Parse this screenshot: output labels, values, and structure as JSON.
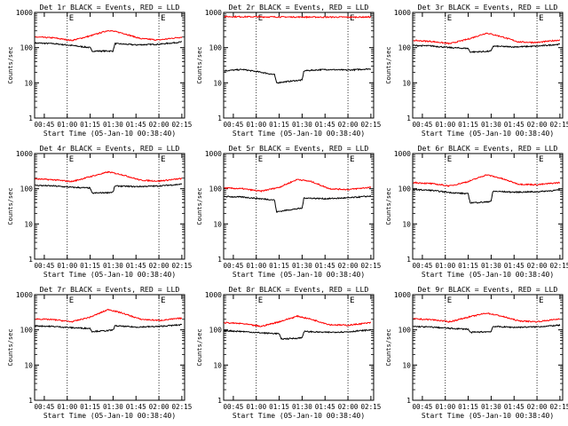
{
  "chart_data": [
    {
      "type": "line",
      "title": "Det 1r BLACK = Events, RED = LLD",
      "xlabel": "Start Time (05-Jan-10 00:38:40)",
      "ylabel": "Counts/sec",
      "yscale": "log",
      "ylim": [
        1,
        1000
      ],
      "xlim": [
        0.6444,
        2.28
      ],
      "xticks": [
        "00:45",
        "01:00",
        "01:15",
        "01:30",
        "01:45",
        "02:00",
        "02:15"
      ],
      "yticks": [
        "1",
        "10",
        "100",
        "1000"
      ],
      "markers": [
        "E",
        "E"
      ],
      "vlines": [
        1.0,
        2.0
      ],
      "series": [
        {
          "color": "#000000",
          "values": [
            [
              0.65,
              135
            ],
            [
              0.85,
              130
            ],
            [
              1.05,
              115
            ],
            [
              1.25,
              100
            ],
            [
              1.27,
              80
            ],
            [
              1.45,
              80
            ],
            [
              1.5,
              80
            ],
            [
              1.52,
              130
            ],
            [
              1.75,
              120
            ],
            [
              2.0,
              125
            ],
            [
              2.25,
              145
            ]
          ]
        },
        {
          "color": "#ff0000",
          "values": [
            [
              0.65,
              200
            ],
            [
              0.85,
              190
            ],
            [
              1.05,
              160
            ],
            [
              1.25,
              215
            ],
            [
              1.45,
              310
            ],
            [
              1.6,
              260
            ],
            [
              1.8,
              180
            ],
            [
              2.0,
              165
            ],
            [
              2.25,
              200
            ]
          ]
        }
      ]
    },
    {
      "type": "line",
      "title": "Det 2r BLACK = Events, RED = LLD",
      "xlabel": "Start Time (05-Jan-10 00:38:40)",
      "ylabel": "Counts/sec",
      "yscale": "log",
      "ylim": [
        1,
        1000
      ],
      "xlim": [
        0.6444,
        2.28
      ],
      "xticks": [
        "00:45",
        "01:00",
        "01:15",
        "01:30",
        "01:45",
        "02:00",
        "02:15"
      ],
      "yticks": [
        "1",
        "10",
        "100",
        "1000"
      ],
      "markers": [
        "E",
        "E"
      ],
      "vlines": [
        1.0,
        2.0
      ],
      "series": [
        {
          "color": "#000000",
          "values": [
            [
              0.65,
              22
            ],
            [
              0.85,
              24
            ],
            [
              1.05,
              20
            ],
            [
              1.2,
              17
            ],
            [
              1.22,
              10
            ],
            [
              1.35,
              11
            ],
            [
              1.5,
              12
            ],
            [
              1.52,
              22
            ],
            [
              1.75,
              24
            ],
            [
              2.0,
              23
            ],
            [
              2.25,
              25
            ]
          ]
        },
        {
          "color": "#ff0000",
          "values": [
            [
              0.65,
              760
            ],
            [
              1.0,
              750
            ],
            [
              1.5,
              740
            ],
            [
              2.0,
              735
            ],
            [
              2.25,
              740
            ]
          ]
        }
      ]
    },
    {
      "type": "line",
      "title": "Det 3r BLACK = Events, RED = LLD",
      "xlabel": "Start Time (05-Jan-10 00:38:40)",
      "ylabel": "Counts/sec",
      "yscale": "log",
      "ylim": [
        1,
        1000
      ],
      "xlim": [
        0.6444,
        2.28
      ],
      "xticks": [
        "00:45",
        "01:00",
        "01:15",
        "01:30",
        "01:45",
        "02:00",
        "02:15"
      ],
      "yticks": [
        "1",
        "10",
        "100",
        "1000"
      ],
      "markers": [
        "E",
        "E"
      ],
      "vlines": [
        1.0,
        2.0
      ],
      "series": [
        {
          "color": "#000000",
          "values": [
            [
              0.65,
              115
            ],
            [
              0.85,
              112
            ],
            [
              1.05,
              100
            ],
            [
              1.25,
              95
            ],
            [
              1.27,
              75
            ],
            [
              1.45,
              78
            ],
            [
              1.5,
              80
            ],
            [
              1.52,
              110
            ],
            [
              1.75,
              105
            ],
            [
              2.0,
              110
            ],
            [
              2.25,
              125
            ]
          ]
        },
        {
          "color": "#ff0000",
          "values": [
            [
              0.65,
              160
            ],
            [
              0.85,
              150
            ],
            [
              1.05,
              130
            ],
            [
              1.25,
              175
            ],
            [
              1.45,
              260
            ],
            [
              1.6,
              210
            ],
            [
              1.8,
              145
            ],
            [
              2.0,
              140
            ],
            [
              2.25,
              165
            ]
          ]
        }
      ]
    },
    {
      "type": "line",
      "title": "Det 4r BLACK = Events, RED = LLD",
      "xlabel": "Start Time (05-Jan-10 00:38:40)",
      "ylabel": "Counts/sec",
      "yscale": "log",
      "ylim": [
        1,
        1000
      ],
      "xlim": [
        0.6444,
        2.28
      ],
      "xticks": [
        "00:45",
        "01:00",
        "01:15",
        "01:30",
        "01:45",
        "02:00",
        "02:15"
      ],
      "yticks": [
        "1",
        "10",
        "100",
        "1000"
      ],
      "markers": [
        "E",
        "E"
      ],
      "vlines": [
        1.0,
        2.0
      ],
      "series": [
        {
          "color": "#000000",
          "values": [
            [
              0.65,
              125
            ],
            [
              0.85,
              120
            ],
            [
              1.05,
              110
            ],
            [
              1.25,
              105
            ],
            [
              1.27,
              75
            ],
            [
              1.45,
              78
            ],
            [
              1.5,
              80
            ],
            [
              1.52,
              120
            ],
            [
              1.75,
              115
            ],
            [
              2.0,
              120
            ],
            [
              2.25,
              135
            ]
          ]
        },
        {
          "color": "#ff0000",
          "values": [
            [
              0.65,
              190
            ],
            [
              0.85,
              180
            ],
            [
              1.05,
              160
            ],
            [
              1.25,
              220
            ],
            [
              1.45,
              300
            ],
            [
              1.6,
              250
            ],
            [
              1.8,
              175
            ],
            [
              2.0,
              165
            ],
            [
              2.25,
              195
            ]
          ]
        }
      ]
    },
    {
      "type": "line",
      "title": "Det 5r BLACK = Events, RED = LLD",
      "xlabel": "Start Time (05-Jan-10 00:38:40)",
      "ylabel": "Counts/sec",
      "yscale": "log",
      "ylim": [
        1,
        1000
      ],
      "xlim": [
        0.6444,
        2.28
      ],
      "xticks": [
        "00:45",
        "01:00",
        "01:15",
        "01:30",
        "01:45",
        "02:00",
        "02:15"
      ],
      "yticks": [
        "1",
        "10",
        "100",
        "1000"
      ],
      "markers": [
        "E",
        "E"
      ],
      "vlines": [
        1.0,
        2.0
      ],
      "series": [
        {
          "color": "#000000",
          "values": [
            [
              0.65,
              60
            ],
            [
              0.85,
              58
            ],
            [
              1.05,
              52
            ],
            [
              1.2,
              48
            ],
            [
              1.22,
              22
            ],
            [
              1.35,
              25
            ],
            [
              1.5,
              28
            ],
            [
              1.52,
              55
            ],
            [
              1.75,
              52
            ],
            [
              2.0,
              55
            ],
            [
              2.25,
              62
            ]
          ]
        },
        {
          "color": "#ff0000",
          "values": [
            [
              0.65,
              105
            ],
            [
              0.85,
              100
            ],
            [
              1.05,
              85
            ],
            [
              1.25,
              110
            ],
            [
              1.45,
              185
            ],
            [
              1.6,
              160
            ],
            [
              1.8,
              100
            ],
            [
              2.0,
              95
            ],
            [
              2.25,
              110
            ]
          ]
        }
      ]
    },
    {
      "type": "line",
      "title": "Det 6r BLACK = Events, RED = LLD",
      "xlabel": "Start Time (05-Jan-10 00:38:40)",
      "ylabel": "Counts/sec",
      "yscale": "log",
      "ylim": [
        1,
        1000
      ],
      "xlim": [
        0.6444,
        2.28
      ],
      "xticks": [
        "00:45",
        "01:00",
        "01:15",
        "01:30",
        "01:45",
        "02:00",
        "02:15"
      ],
      "yticks": [
        "1",
        "10",
        "100",
        "1000"
      ],
      "markers": [
        "E",
        "E"
      ],
      "vlines": [
        1.0,
        2.0
      ],
      "series": [
        {
          "color": "#000000",
          "values": [
            [
              0.65,
              95
            ],
            [
              0.85,
              90
            ],
            [
              1.05,
              78
            ],
            [
              1.25,
              72
            ],
            [
              1.27,
              40
            ],
            [
              1.45,
              42
            ],
            [
              1.5,
              45
            ],
            [
              1.52,
              85
            ],
            [
              1.75,
              80
            ],
            [
              2.0,
              82
            ],
            [
              2.25,
              92
            ]
          ]
        },
        {
          "color": "#ff0000",
          "values": [
            [
              0.65,
              150
            ],
            [
              0.85,
              140
            ],
            [
              1.05,
              120
            ],
            [
              1.25,
              160
            ],
            [
              1.45,
              250
            ],
            [
              1.6,
              200
            ],
            [
              1.8,
              135
            ],
            [
              2.0,
              130
            ],
            [
              2.25,
              150
            ]
          ]
        }
      ]
    },
    {
      "type": "line",
      "title": "Det 7r BLACK = Events, RED = LLD",
      "xlabel": "Start Time (05-Jan-10 00:38:40)",
      "ylabel": "Counts/sec",
      "yscale": "log",
      "ylim": [
        1,
        1000
      ],
      "xlim": [
        0.6444,
        2.28
      ],
      "xticks": [
        "00:45",
        "01:00",
        "01:15",
        "01:30",
        "01:45",
        "02:00",
        "02:15"
      ],
      "yticks": [
        "1",
        "10",
        "100",
        "1000"
      ],
      "markers": [
        "E",
        "E"
      ],
      "vlines": [
        1.0,
        2.0
      ],
      "series": [
        {
          "color": "#000000",
          "values": [
            [
              0.65,
              130
            ],
            [
              0.85,
              125
            ],
            [
              1.05,
              115
            ],
            [
              1.25,
              110
            ],
            [
              1.27,
              90
            ],
            [
              1.45,
              95
            ],
            [
              1.5,
              100
            ],
            [
              1.52,
              130
            ],
            [
              1.75,
              120
            ],
            [
              2.0,
              125
            ],
            [
              2.25,
              140
            ]
          ]
        },
        {
          "color": "#ff0000",
          "values": [
            [
              0.65,
              205
            ],
            [
              0.85,
              195
            ],
            [
              1.05,
              170
            ],
            [
              1.25,
              230
            ],
            [
              1.45,
              380
            ],
            [
              1.6,
              300
            ],
            [
              1.8,
              200
            ],
            [
              2.0,
              185
            ],
            [
              2.25,
              215
            ]
          ]
        }
      ]
    },
    {
      "type": "line",
      "title": "Det 8r BLACK = Events, RED = LLD",
      "xlabel": "Start Time (05-Jan-10 00:38:40)",
      "ylabel": "Counts/sec",
      "yscale": "log",
      "ylim": [
        1,
        1000
      ],
      "xlim": [
        0.6444,
        2.28
      ],
      "xticks": [
        "00:45",
        "01:00",
        "01:15",
        "01:30",
        "01:45",
        "02:00",
        "02:15"
      ],
      "yticks": [
        "1",
        "10",
        "100",
        "1000"
      ],
      "markers": [
        "E",
        "E"
      ],
      "vlines": [
        1.0,
        2.0
      ],
      "series": [
        {
          "color": "#000000",
          "values": [
            [
              0.65,
              95
            ],
            [
              0.85,
              90
            ],
            [
              1.05,
              82
            ],
            [
              1.25,
              78
            ],
            [
              1.27,
              55
            ],
            [
              1.45,
              58
            ],
            [
              1.5,
              60
            ],
            [
              1.52,
              90
            ],
            [
              1.75,
              85
            ],
            [
              2.0,
              88
            ],
            [
              2.25,
              100
            ]
          ]
        },
        {
          "color": "#ff0000",
          "values": [
            [
              0.65,
              160
            ],
            [
              0.85,
              150
            ],
            [
              1.05,
              125
            ],
            [
              1.25,
              170
            ],
            [
              1.45,
              245
            ],
            [
              1.6,
              200
            ],
            [
              1.8,
              140
            ],
            [
              2.0,
              135
            ],
            [
              2.25,
              160
            ]
          ]
        }
      ]
    },
    {
      "type": "line",
      "title": "Det 9r BLACK = Events, RED = LLD",
      "xlabel": "Start Time (05-Jan-10 00:38:40)",
      "ylabel": "Counts/sec",
      "yscale": "log",
      "ylim": [
        1,
        1000
      ],
      "xlim": [
        0.6444,
        2.28
      ],
      "xticks": [
        "00:45",
        "01:00",
        "01:15",
        "01:30",
        "01:45",
        "02:00",
        "02:15"
      ],
      "yticks": [
        "1",
        "10",
        "100",
        "1000"
      ],
      "markers": [
        "E",
        "E"
      ],
      "vlines": [
        1.0,
        2.0
      ],
      "series": [
        {
          "color": "#000000",
          "values": [
            [
              0.65,
              125
            ],
            [
              0.85,
              120
            ],
            [
              1.05,
              110
            ],
            [
              1.25,
              105
            ],
            [
              1.27,
              85
            ],
            [
              1.45,
              88
            ],
            [
              1.5,
              90
            ],
            [
              1.52,
              125
            ],
            [
              1.75,
              118
            ],
            [
              2.0,
              122
            ],
            [
              2.25,
              135
            ]
          ]
        },
        {
          "color": "#ff0000",
          "values": [
            [
              0.65,
              205
            ],
            [
              0.85,
              195
            ],
            [
              1.05,
              170
            ],
            [
              1.25,
              230
            ],
            [
              1.45,
              300
            ],
            [
              1.6,
              250
            ],
            [
              1.8,
              180
            ],
            [
              2.0,
              170
            ],
            [
              2.25,
              205
            ]
          ]
        }
      ]
    }
  ]
}
